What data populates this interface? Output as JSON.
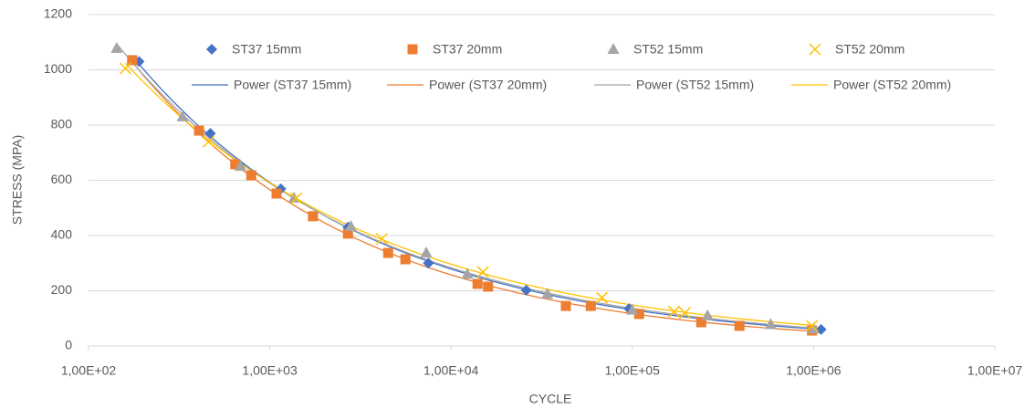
{
  "chart_data": {
    "type": "scatter",
    "xlabel": "CYCLE",
    "ylabel": "STRESS (MPA)",
    "xscale": "log",
    "grid": true,
    "xlim": [
      100,
      10000000
    ],
    "xticks": [
      {
        "value": 100,
        "label": "1,00E+02"
      },
      {
        "value": 1000,
        "label": "1,00E+03"
      },
      {
        "value": 10000,
        "label": "1,00E+04"
      },
      {
        "value": 100000,
        "label": "1,00E+05"
      },
      {
        "value": 1000000,
        "label": "1,00E+06"
      },
      {
        "value": 10000000,
        "label": "1,00E+07"
      }
    ],
    "ylim": [
      0,
      1200
    ],
    "yticks": [
      0,
      200,
      400,
      600,
      800,
      1000,
      1200
    ],
    "series": [
      {
        "name": "ST37 15mm",
        "trendline": "Power (ST37 15mm)",
        "color": "#4472c4",
        "marker": "diamond",
        "x": [
          190,
          470,
          680,
          1150,
          2700,
          7500,
          26000,
          96000,
          1100000
        ],
        "values": [
          1030,
          770,
          658,
          569,
          430,
          300,
          202,
          135,
          60
        ]
      },
      {
        "name": "ST37 20mm",
        "trendline": "Power (ST37 20mm)",
        "color": "#ed7d31",
        "marker": "square",
        "x": [
          174,
          407,
          645,
          790,
          1090,
          1730,
          2700,
          4500,
          5600,
          14000,
          16000,
          43000,
          59000,
          109000,
          240000,
          390000,
          980000
        ],
        "values": [
          1035,
          780,
          658,
          618,
          552,
          470,
          407,
          337,
          314,
          225,
          215,
          145,
          145,
          116,
          86,
          73,
          56
        ]
      },
      {
        "name": "ST52 15mm",
        "trendline": "Power (ST52 15mm)",
        "color": "#a5a5a5",
        "marker": "triangle",
        "x": [
          143,
          330,
          690,
          1360,
          2800,
          7300,
          12300,
          34000,
          100000,
          260000,
          580000,
          1000000
        ],
        "values": [
          1078,
          830,
          651,
          536,
          433,
          337,
          260,
          188,
          130,
          110,
          78,
          62
        ]
      },
      {
        "name": "ST52 20mm",
        "trendline": "Power (ST52 20mm)",
        "color": "#ffc000",
        "marker": "x",
        "x": [
          160,
          460,
          1400,
          4150,
          15000,
          68000,
          170000,
          195000,
          980000
        ],
        "values": [
          1005,
          740,
          535,
          388,
          268,
          175,
          125,
          120,
          73
        ]
      }
    ]
  }
}
